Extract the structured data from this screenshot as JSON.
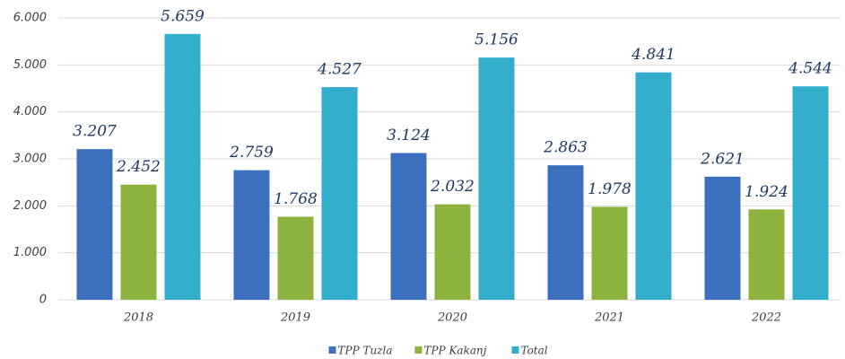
{
  "chart_data": {
    "type": "bar",
    "categories": [
      "2018",
      "2019",
      "2020",
      "2021",
      "2022"
    ],
    "series": [
      {
        "name": "TPP  Tuzla",
        "color": "#3c70bf",
        "values": [
          3207,
          2759,
          3124,
          2863,
          2621
        ],
        "value_labels": [
          "3.207",
          "2.759",
          "3.124",
          "2.863",
          "2.621"
        ]
      },
      {
        "name": "TPP Kakanj",
        "color": "#8cb33d",
        "values": [
          2452,
          1768,
          2032,
          1978,
          1924
        ],
        "value_labels": [
          "2.452",
          "1.768",
          "2.032",
          "1.978",
          "1.924"
        ]
      },
      {
        "name": "Total",
        "color": "#32adcb",
        "values": [
          5659,
          4527,
          5156,
          4841,
          4544
        ],
        "value_labels": [
          "5.659",
          "4.527",
          "5.156",
          "4.841",
          "4.544"
        ]
      }
    ],
    "ylim": [
      0,
      6000
    ],
    "yticks": [
      0,
      {
        "value": 1000,
        "label": "1.000"
      },
      {
        "value": 2000,
        "label": "2.000"
      },
      {
        "value": 3000,
        "label": "3.000"
      },
      {
        "value": 4000,
        "label": "4.000"
      },
      {
        "value": 5000,
        "label": "5.000"
      },
      {
        "value": 6000,
        "label": "6.000"
      }
    ],
    "grid": true,
    "legend": "bottom"
  }
}
